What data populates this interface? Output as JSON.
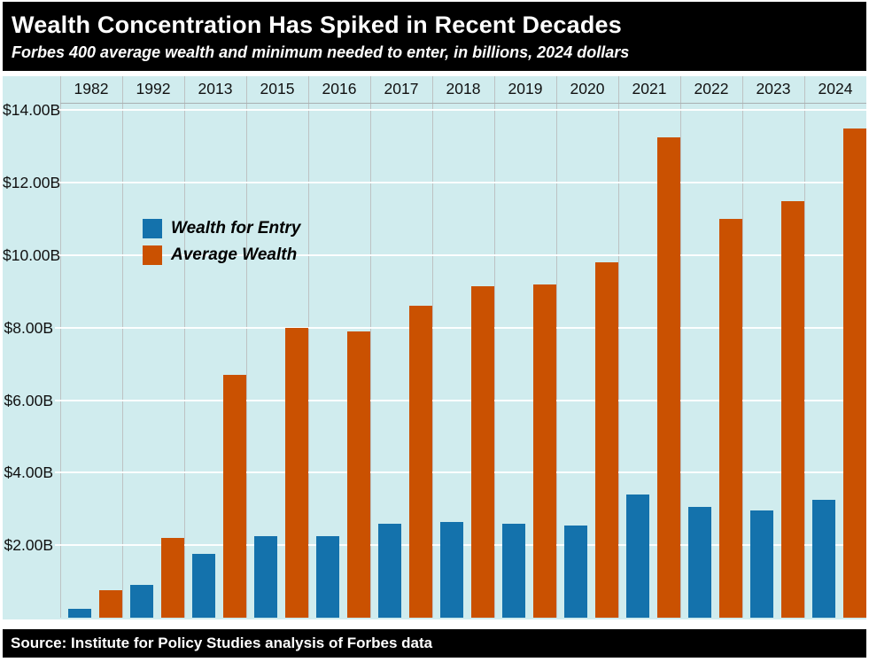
{
  "header": {
    "title": "Wealth Concentration Has Spiked in Recent Decades",
    "subtitle": "Forbes 400 average wealth and minimum needed to enter, in billions, 2024 dollars"
  },
  "footer": {
    "source": "Source: Institute for Policy Studies analysis of Forbes data"
  },
  "colors": {
    "header_bg": "#000000",
    "header_text": "#ffffff",
    "chart_bg": "#d0ecee",
    "entry_blue": "#1472ac",
    "average_orange": "#ca5101",
    "h_gridline": "#ffffff",
    "v_gridline": "#bdc2c3"
  },
  "chart_data": {
    "type": "bar",
    "title": "Wealth Concentration Has Spiked in Recent Decades",
    "subtitle": "Forbes 400 average wealth and minimum needed to enter, in billions, 2024 dollars",
    "categories": [
      "1982",
      "1992",
      "2013",
      "2015",
      "2016",
      "2017",
      "2018",
      "2019",
      "2020",
      "2021",
      "2022",
      "2023",
      "2024"
    ],
    "series": [
      {
        "name": "Wealth for Entry",
        "color": "#1472ac",
        "values": [
          0.25,
          0.9,
          1.75,
          2.25,
          2.25,
          2.6,
          2.65,
          2.6,
          2.55,
          3.4,
          3.05,
          2.95,
          3.25
        ]
      },
      {
        "name": "Average Wealth",
        "color": "#ca5101",
        "values": [
          0.75,
          2.2,
          6.7,
          8.0,
          7.9,
          8.6,
          9.15,
          9.2,
          9.8,
          13.25,
          11.0,
          11.5,
          13.5
        ]
      }
    ],
    "unit": "billions of 2024 dollars",
    "ylim": [
      0,
      14.2
    ],
    "y_ticks": [
      {
        "value": 2,
        "label": "$2.00B"
      },
      {
        "value": 4,
        "label": "$4.00B"
      },
      {
        "value": 6,
        "label": "$6.00B"
      },
      {
        "value": 8,
        "label": "$8.00B"
      },
      {
        "value": 10,
        "label": "$10.00B"
      },
      {
        "value": 12,
        "label": "$12.00B"
      },
      {
        "value": 14,
        "label": "$14.00B"
      }
    ],
    "grid": true,
    "x_axis_position": "top",
    "legend_position": "inside-upper-left"
  }
}
